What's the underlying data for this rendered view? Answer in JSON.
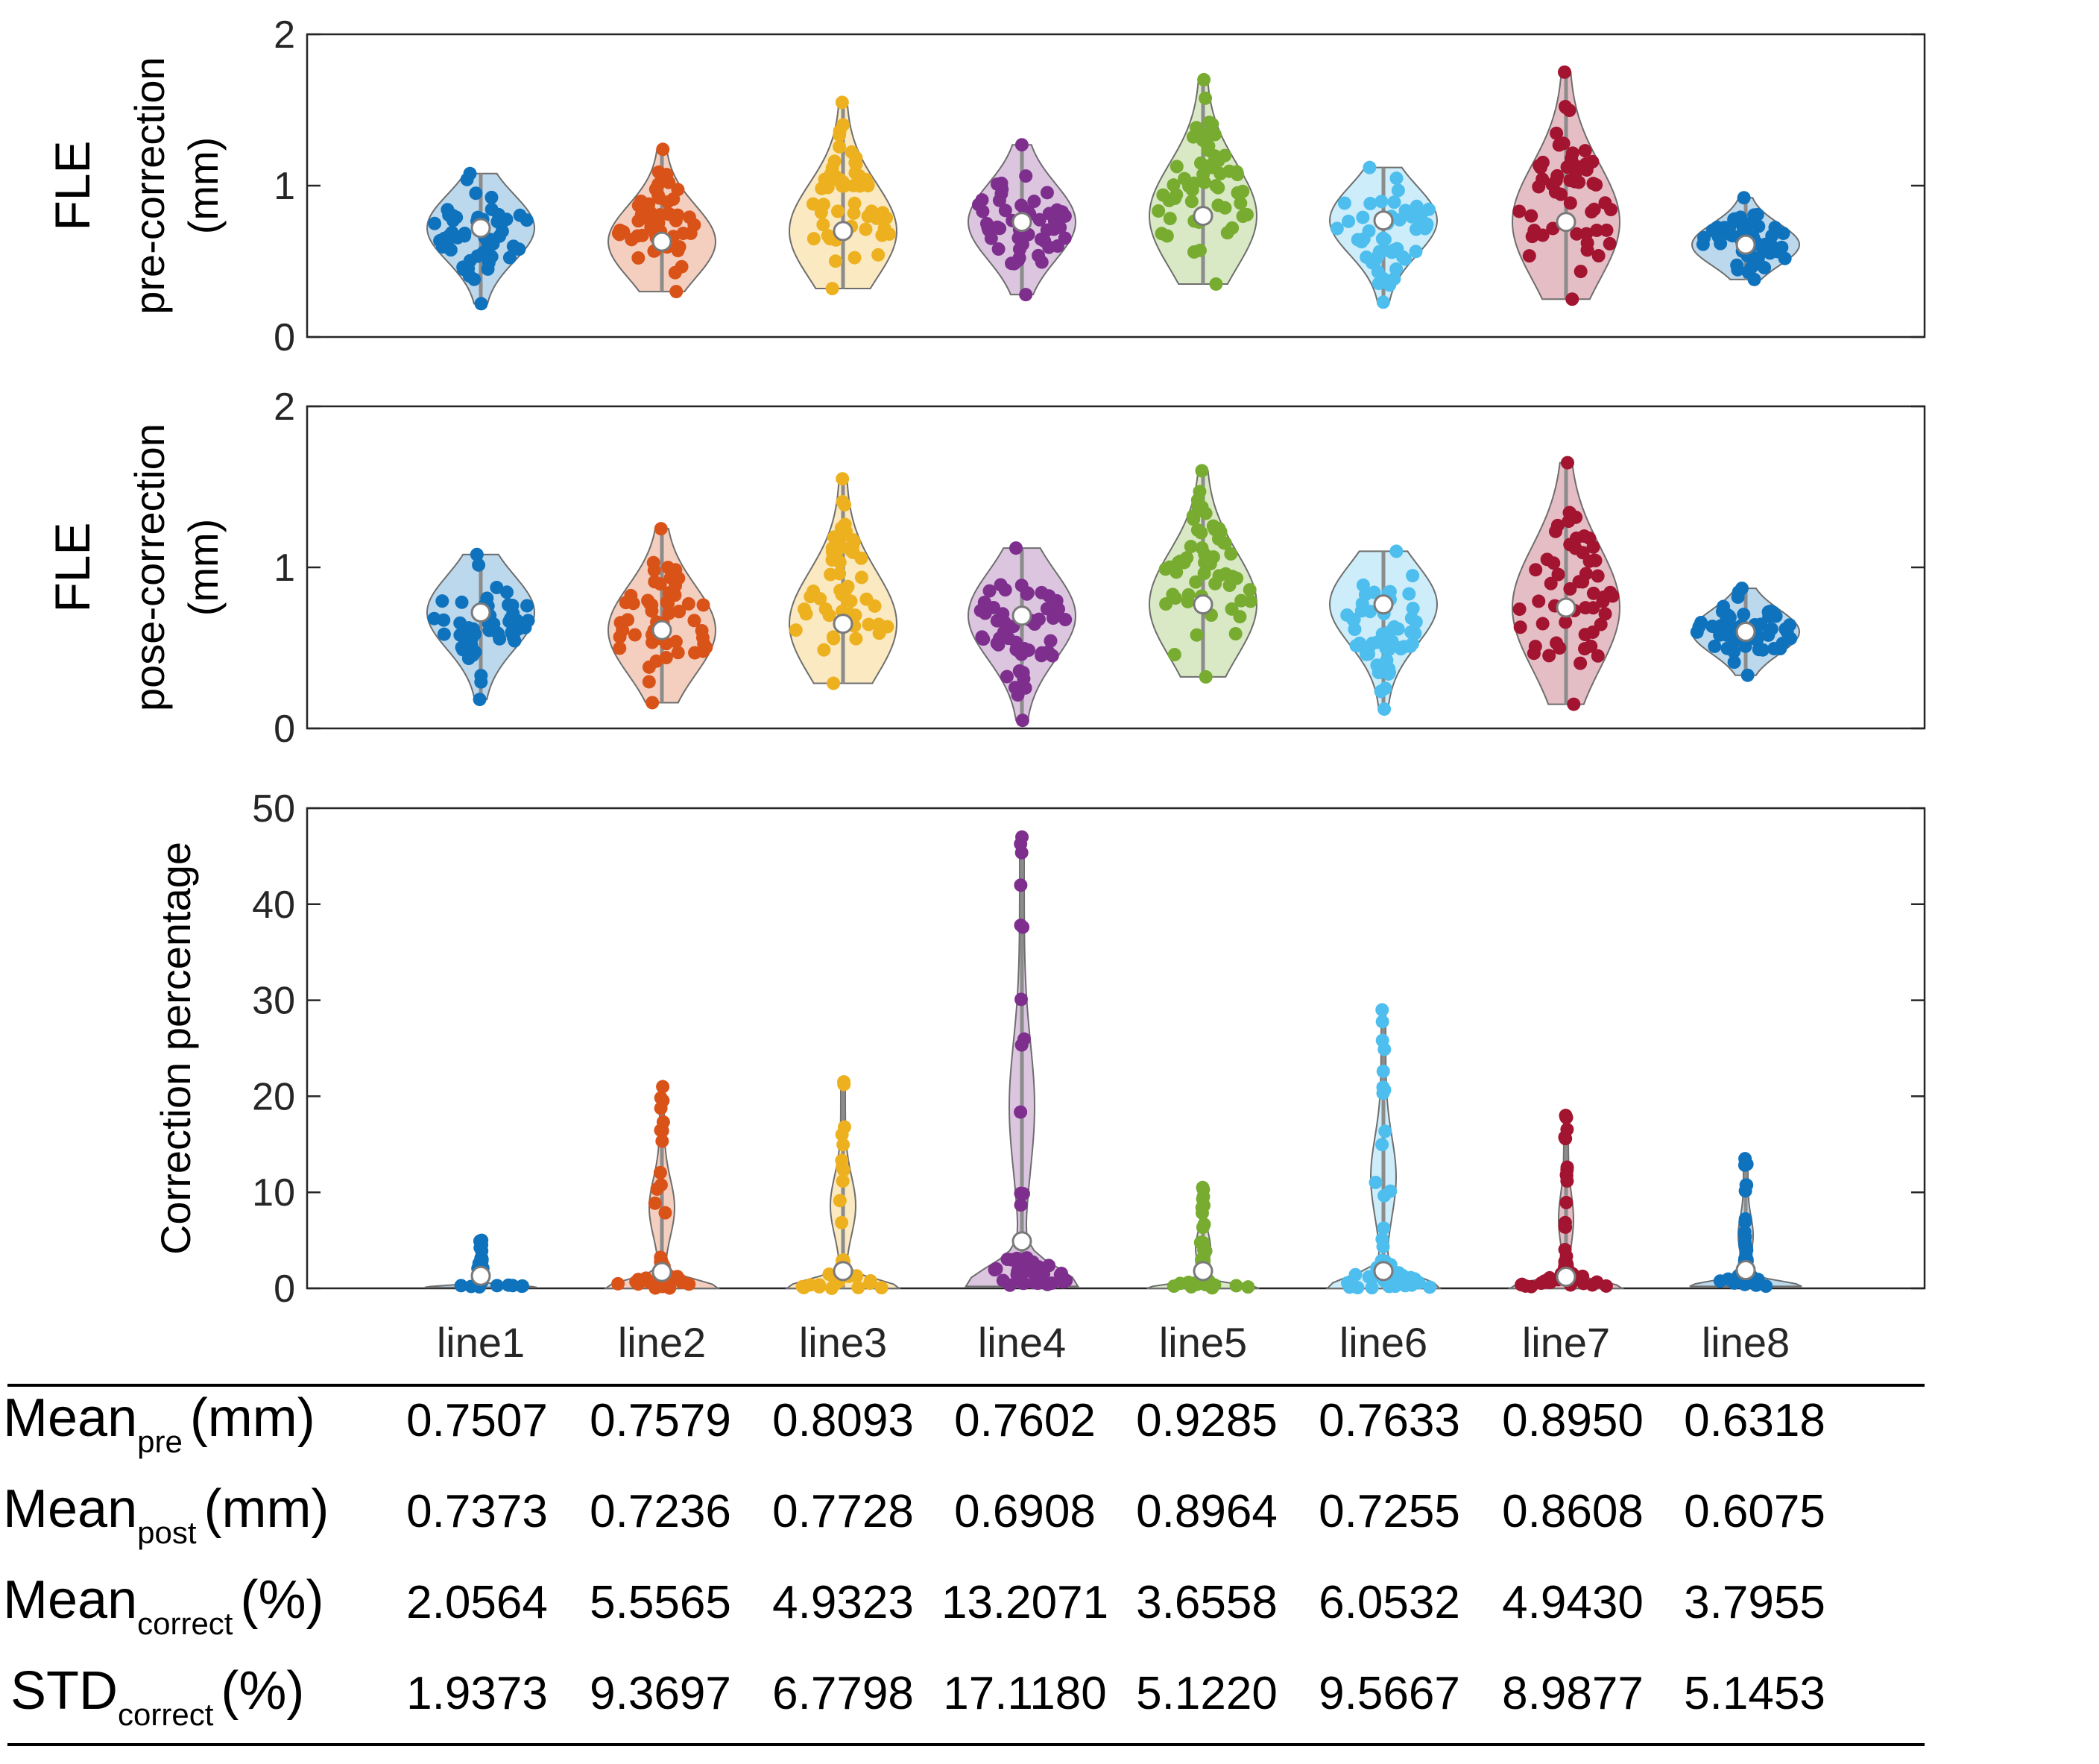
{
  "colors": {
    "line1": "#0f72bd",
    "line2": "#d95319",
    "line3": "#edb120",
    "line4": "#7e2f8e",
    "line5": "#77ac30",
    "line6": "#4dbeee",
    "line7": "#a2142f",
    "line8": "#0f72bd",
    "axis": "#262626",
    "text": "#000000"
  },
  "chart_data": [
    {
      "type": "violin",
      "id": "pre",
      "ylabel": [
        "FLE",
        "pre-correction",
        "(mm)"
      ],
      "ylim": [
        0,
        2
      ],
      "yticks": [
        0,
        1,
        2
      ],
      "categories": [
        "line1",
        "line2",
        "line3",
        "line4",
        "line5",
        "line6",
        "line7",
        "line8"
      ],
      "medians": [
        0.72,
        0.63,
        0.7,
        0.76,
        0.8,
        0.77,
        0.76,
        0.61
      ],
      "ranges": [
        [
          0.22,
          1.08
        ],
        [
          0.3,
          1.24
        ],
        [
          0.32,
          1.55
        ],
        [
          0.28,
          1.27
        ],
        [
          0.35,
          1.7
        ],
        [
          0.23,
          1.12
        ],
        [
          0.25,
          1.75
        ],
        [
          0.38,
          0.92
        ]
      ]
    },
    {
      "type": "violin",
      "id": "post",
      "ylabel": [
        "FLE",
        "pose-correction",
        "(mm)"
      ],
      "ylim": [
        0,
        2
      ],
      "yticks": [
        0,
        1,
        2
      ],
      "categories": [
        "line1",
        "line2",
        "line3",
        "line4",
        "line5",
        "line6",
        "line7",
        "line8"
      ],
      "medians": [
        0.72,
        0.61,
        0.65,
        0.7,
        0.77,
        0.77,
        0.75,
        0.6
      ],
      "ranges": [
        [
          0.18,
          1.08
        ],
        [
          0.16,
          1.24
        ],
        [
          0.28,
          1.55
        ],
        [
          0.05,
          1.12
        ],
        [
          0.32,
          1.6
        ],
        [
          0.12,
          1.1
        ],
        [
          0.15,
          1.65
        ],
        [
          0.33,
          0.87
        ]
      ]
    },
    {
      "type": "violin",
      "id": "correction",
      "ylabel": [
        "Correction percentage"
      ],
      "ylim": [
        0,
        50
      ],
      "yticks": [
        0,
        10,
        20,
        30,
        40,
        50
      ],
      "categories": [
        "line1",
        "line2",
        "line3",
        "line4",
        "line5",
        "line6",
        "line7",
        "line8"
      ],
      "medians": [
        1.3,
        1.7,
        1.8,
        4.9,
        1.8,
        1.8,
        1.2,
        1.9
      ],
      "ranges": [
        [
          0.1,
          5.0
        ],
        [
          0.0,
          21.0
        ],
        [
          0.0,
          21.5
        ],
        [
          0.2,
          47.0
        ],
        [
          0.0,
          10.5
        ],
        [
          0.0,
          29.0
        ],
        [
          0.0,
          18.0
        ],
        [
          0.2,
          13.5
        ]
      ]
    }
  ],
  "table": {
    "rows": [
      {
        "label": "Mean",
        "sub": "pre",
        "unit": "(mm)",
        "values": [
          "0.7507",
          "0.7579",
          "0.8093",
          "0.7602",
          "0.9285",
          "0.7633",
          "0.8950",
          "0.6318"
        ]
      },
      {
        "label": "Mean",
        "sub": "post",
        "unit": "(mm)",
        "values": [
          "0.7373",
          "0.7236",
          "0.7728",
          "0.6908",
          "0.8964",
          "0.7255",
          "0.8608",
          "0.6075"
        ]
      },
      {
        "label": "Mean",
        "sub": "correct",
        "unit": "(%)",
        "values": [
          "2.0564",
          "5.5565",
          "4.9323",
          "13.2071",
          "3.6558",
          "6.0532",
          "4.9430",
          "3.7955"
        ]
      },
      {
        "label": "STD",
        "sub": "correct",
        "unit": "(%)",
        "values": [
          "1.9373",
          "9.3697",
          "6.7798",
          "17.1180",
          "5.1220",
          "9.5667",
          "8.9877",
          "5.1453"
        ]
      }
    ]
  }
}
